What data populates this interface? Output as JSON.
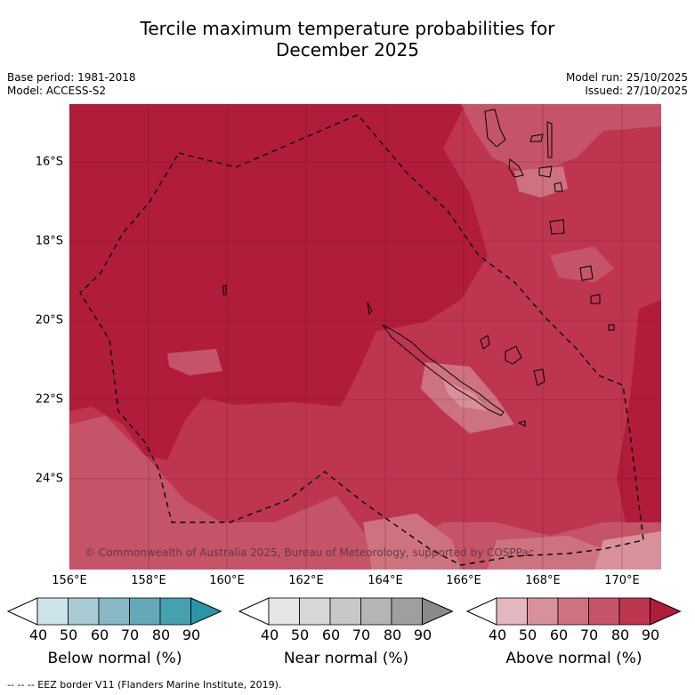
{
  "header": {
    "title_line1": "Tercile maximum temperature probabilities for",
    "title_line2": "December 2025",
    "base_period": "Base period: 1981-2018",
    "model": "Model: ACCESS-S2",
    "model_run": "Model run: 25/10/2025",
    "issued": "Issued: 27/10/2025"
  },
  "map": {
    "lat_labels": [
      "16°S",
      "18°S",
      "20°S",
      "22°S",
      "24°S"
    ],
    "lon_labels": [
      "156°E",
      "158°E",
      "160°E",
      "162°E",
      "164°E",
      "166°E",
      "168°E",
      "170°E"
    ],
    "credit": "© Commonwealth of Australia 2025, Bureau of Meteorology, supported by COSPPac",
    "colors": {
      "above_90": "#b01c3a",
      "above_80": "#be3550",
      "above_70": "#c55468",
      "above_60": "#cd7380",
      "above_50": "#d8919a",
      "land_outline": "#000000"
    }
  },
  "legends": [
    {
      "title": "Below normal (%)",
      "ticks": [
        "40",
        "50",
        "60",
        "70",
        "80",
        "90"
      ],
      "colors": [
        "#ffffff",
        "#cde4ea",
        "#a8ccd4",
        "#88b9c4",
        "#65a9b8",
        "#45a0b0",
        "#2d95a8"
      ]
    },
    {
      "title": "Near normal (%)",
      "ticks": [
        "40",
        "50",
        "60",
        "70",
        "80",
        "90"
      ],
      "colors": [
        "#ffffff",
        "#e6e6e6",
        "#d7d7d7",
        "#c8c8c8",
        "#b5b5b5",
        "#9f9f9f",
        "#8a8a8a"
      ]
    },
    {
      "title": "Above normal (%)",
      "ticks": [
        "40",
        "50",
        "60",
        "70",
        "80",
        "90"
      ],
      "colors": [
        "#ffffff",
        "#e3b7bf",
        "#d8919a",
        "#cd7380",
        "#c55468",
        "#be3550",
        "#b01c3a"
      ]
    }
  ],
  "footer": "--  --  -- EEZ border V11 (Flanders Marine Institute, 2019)."
}
